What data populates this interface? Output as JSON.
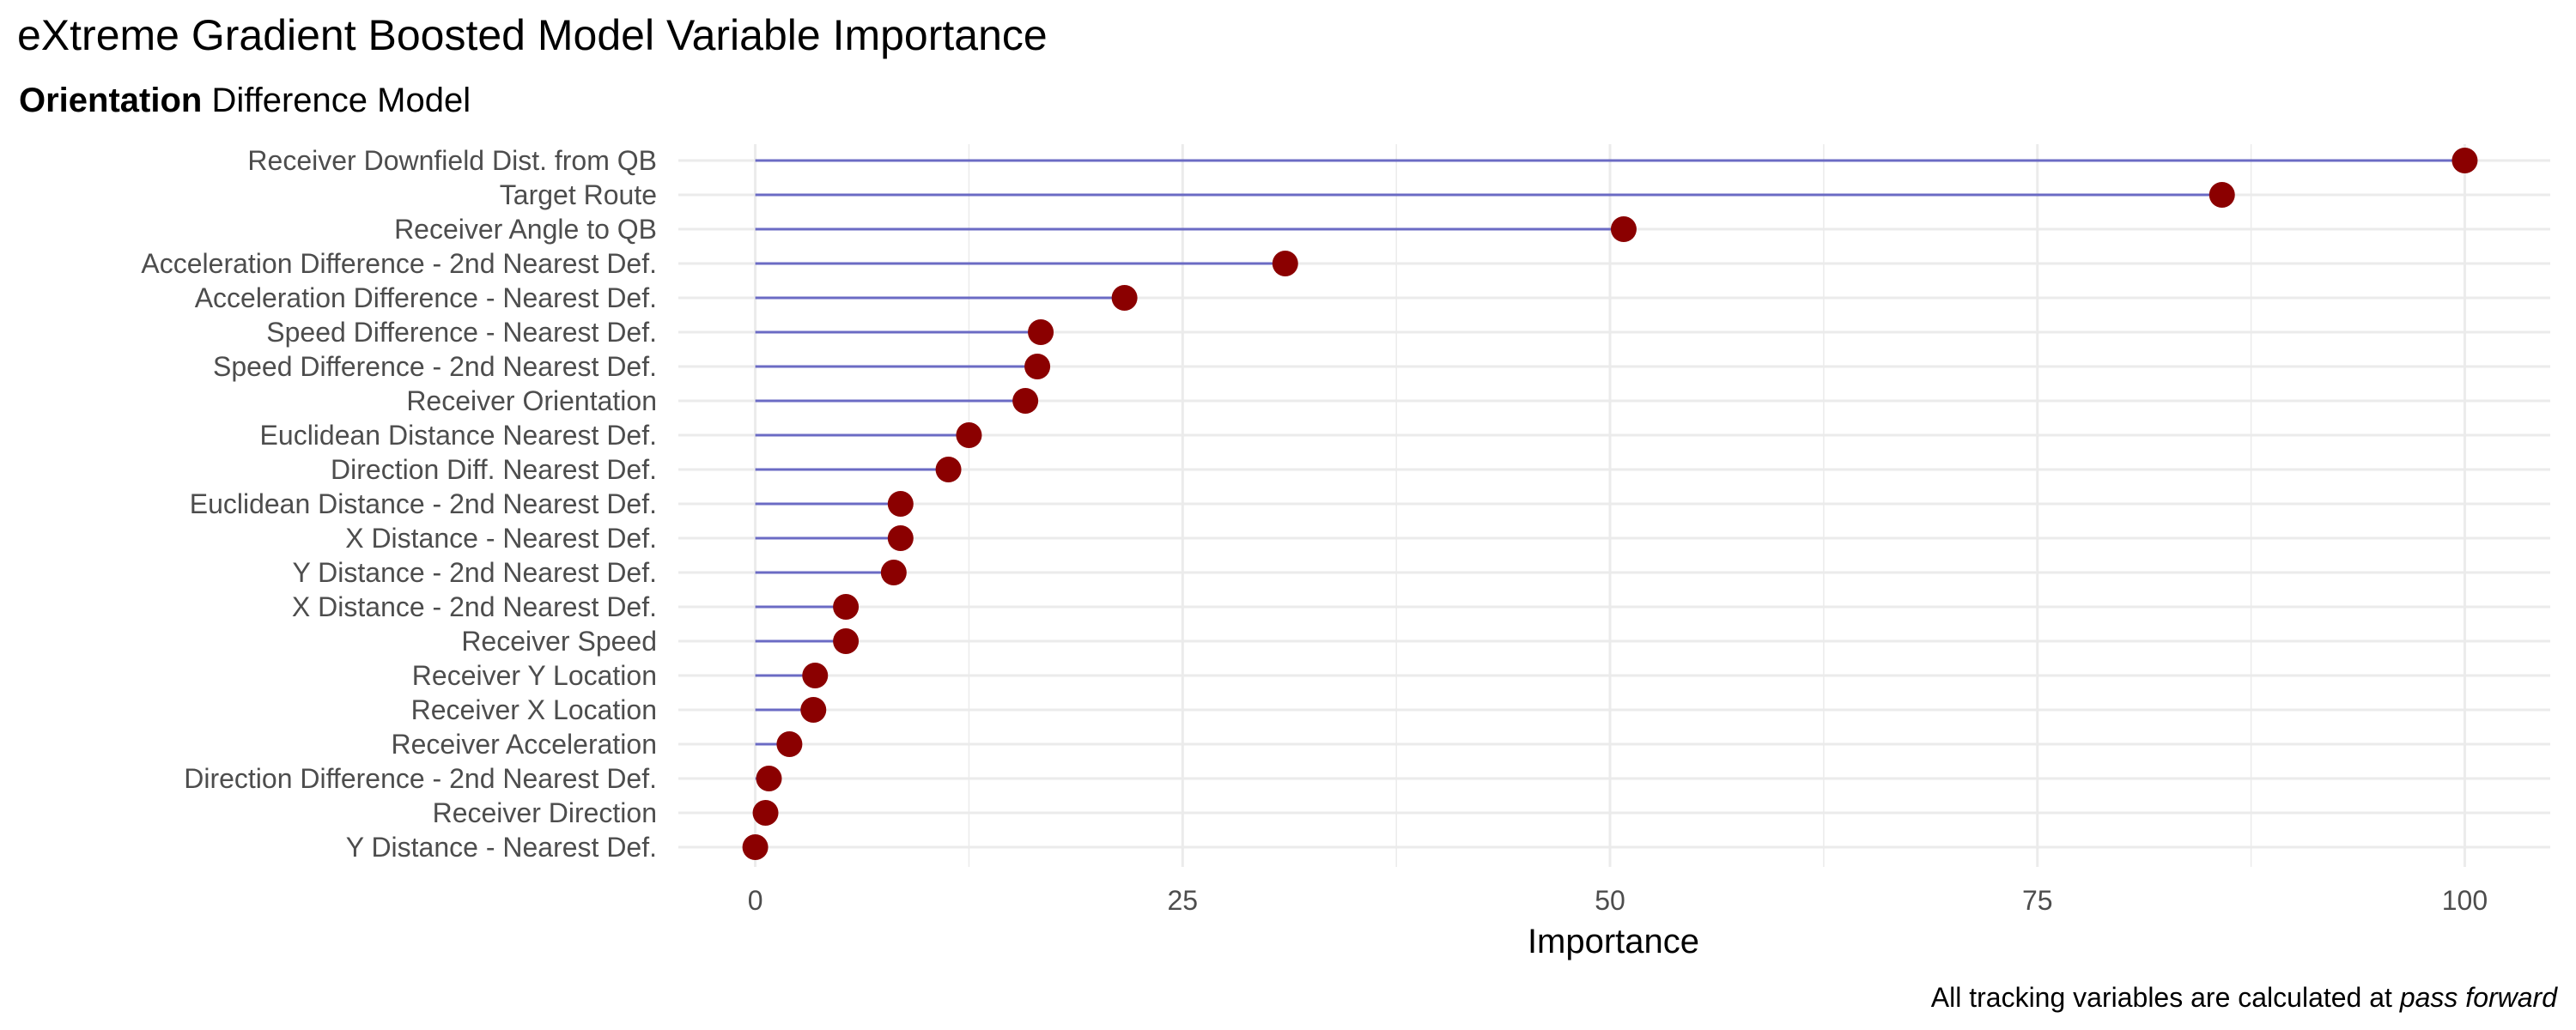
{
  "chart_data": {
    "type": "lollipop",
    "title": "eXtreme Gradient Boosted Model Variable Importance",
    "subtitle_bold": "Orientation",
    "subtitle_rest": " Difference Model",
    "xlabel": "Importance",
    "ylabel": "",
    "caption_prefix": "All tracking variables are calculated at ",
    "caption_italic": "pass forward",
    "xlim": [
      -4.5,
      105
    ],
    "x_ticks": [
      0,
      25,
      50,
      75,
      100
    ],
    "x_tick_labels": [
      "0",
      "25",
      "50",
      "75",
      "100"
    ],
    "grid": true,
    "colors": {
      "stem": "#6b6bc4",
      "point": "#8b0000"
    },
    "categories": [
      "Receiver Downfield Dist. from QB",
      "Target Route",
      "Receiver Angle to QB",
      "Acceleration Difference - 2nd Nearest Def.",
      "Acceleration Difference - Nearest Def.",
      "Speed Difference - Nearest Def.",
      "Speed Difference - 2nd Nearest Def.",
      "Receiver Orientation",
      "Euclidean Distance Nearest Def.",
      "Direction Diff. Nearest Def.",
      "Euclidean Distance - 2nd Nearest Def.",
      "X Distance - Nearest Def.",
      "Y Distance - 2nd Nearest Def.",
      "X Distance - 2nd Nearest Def.",
      "Receiver Speed",
      "Receiver Y Location",
      "Receiver X Location",
      "Receiver Acceleration",
      "Direction Difference - 2nd Nearest Def.",
      "Receiver Direction",
      "Y Distance - Nearest Def."
    ],
    "values": [
      100,
      85.8,
      50.8,
      31,
      21.6,
      16.7,
      16.5,
      15.8,
      12.5,
      11.3,
      8.5,
      8.5,
      8.1,
      5.3,
      5.3,
      3.5,
      3.4,
      2,
      0.8,
      0.6,
      0
    ]
  }
}
